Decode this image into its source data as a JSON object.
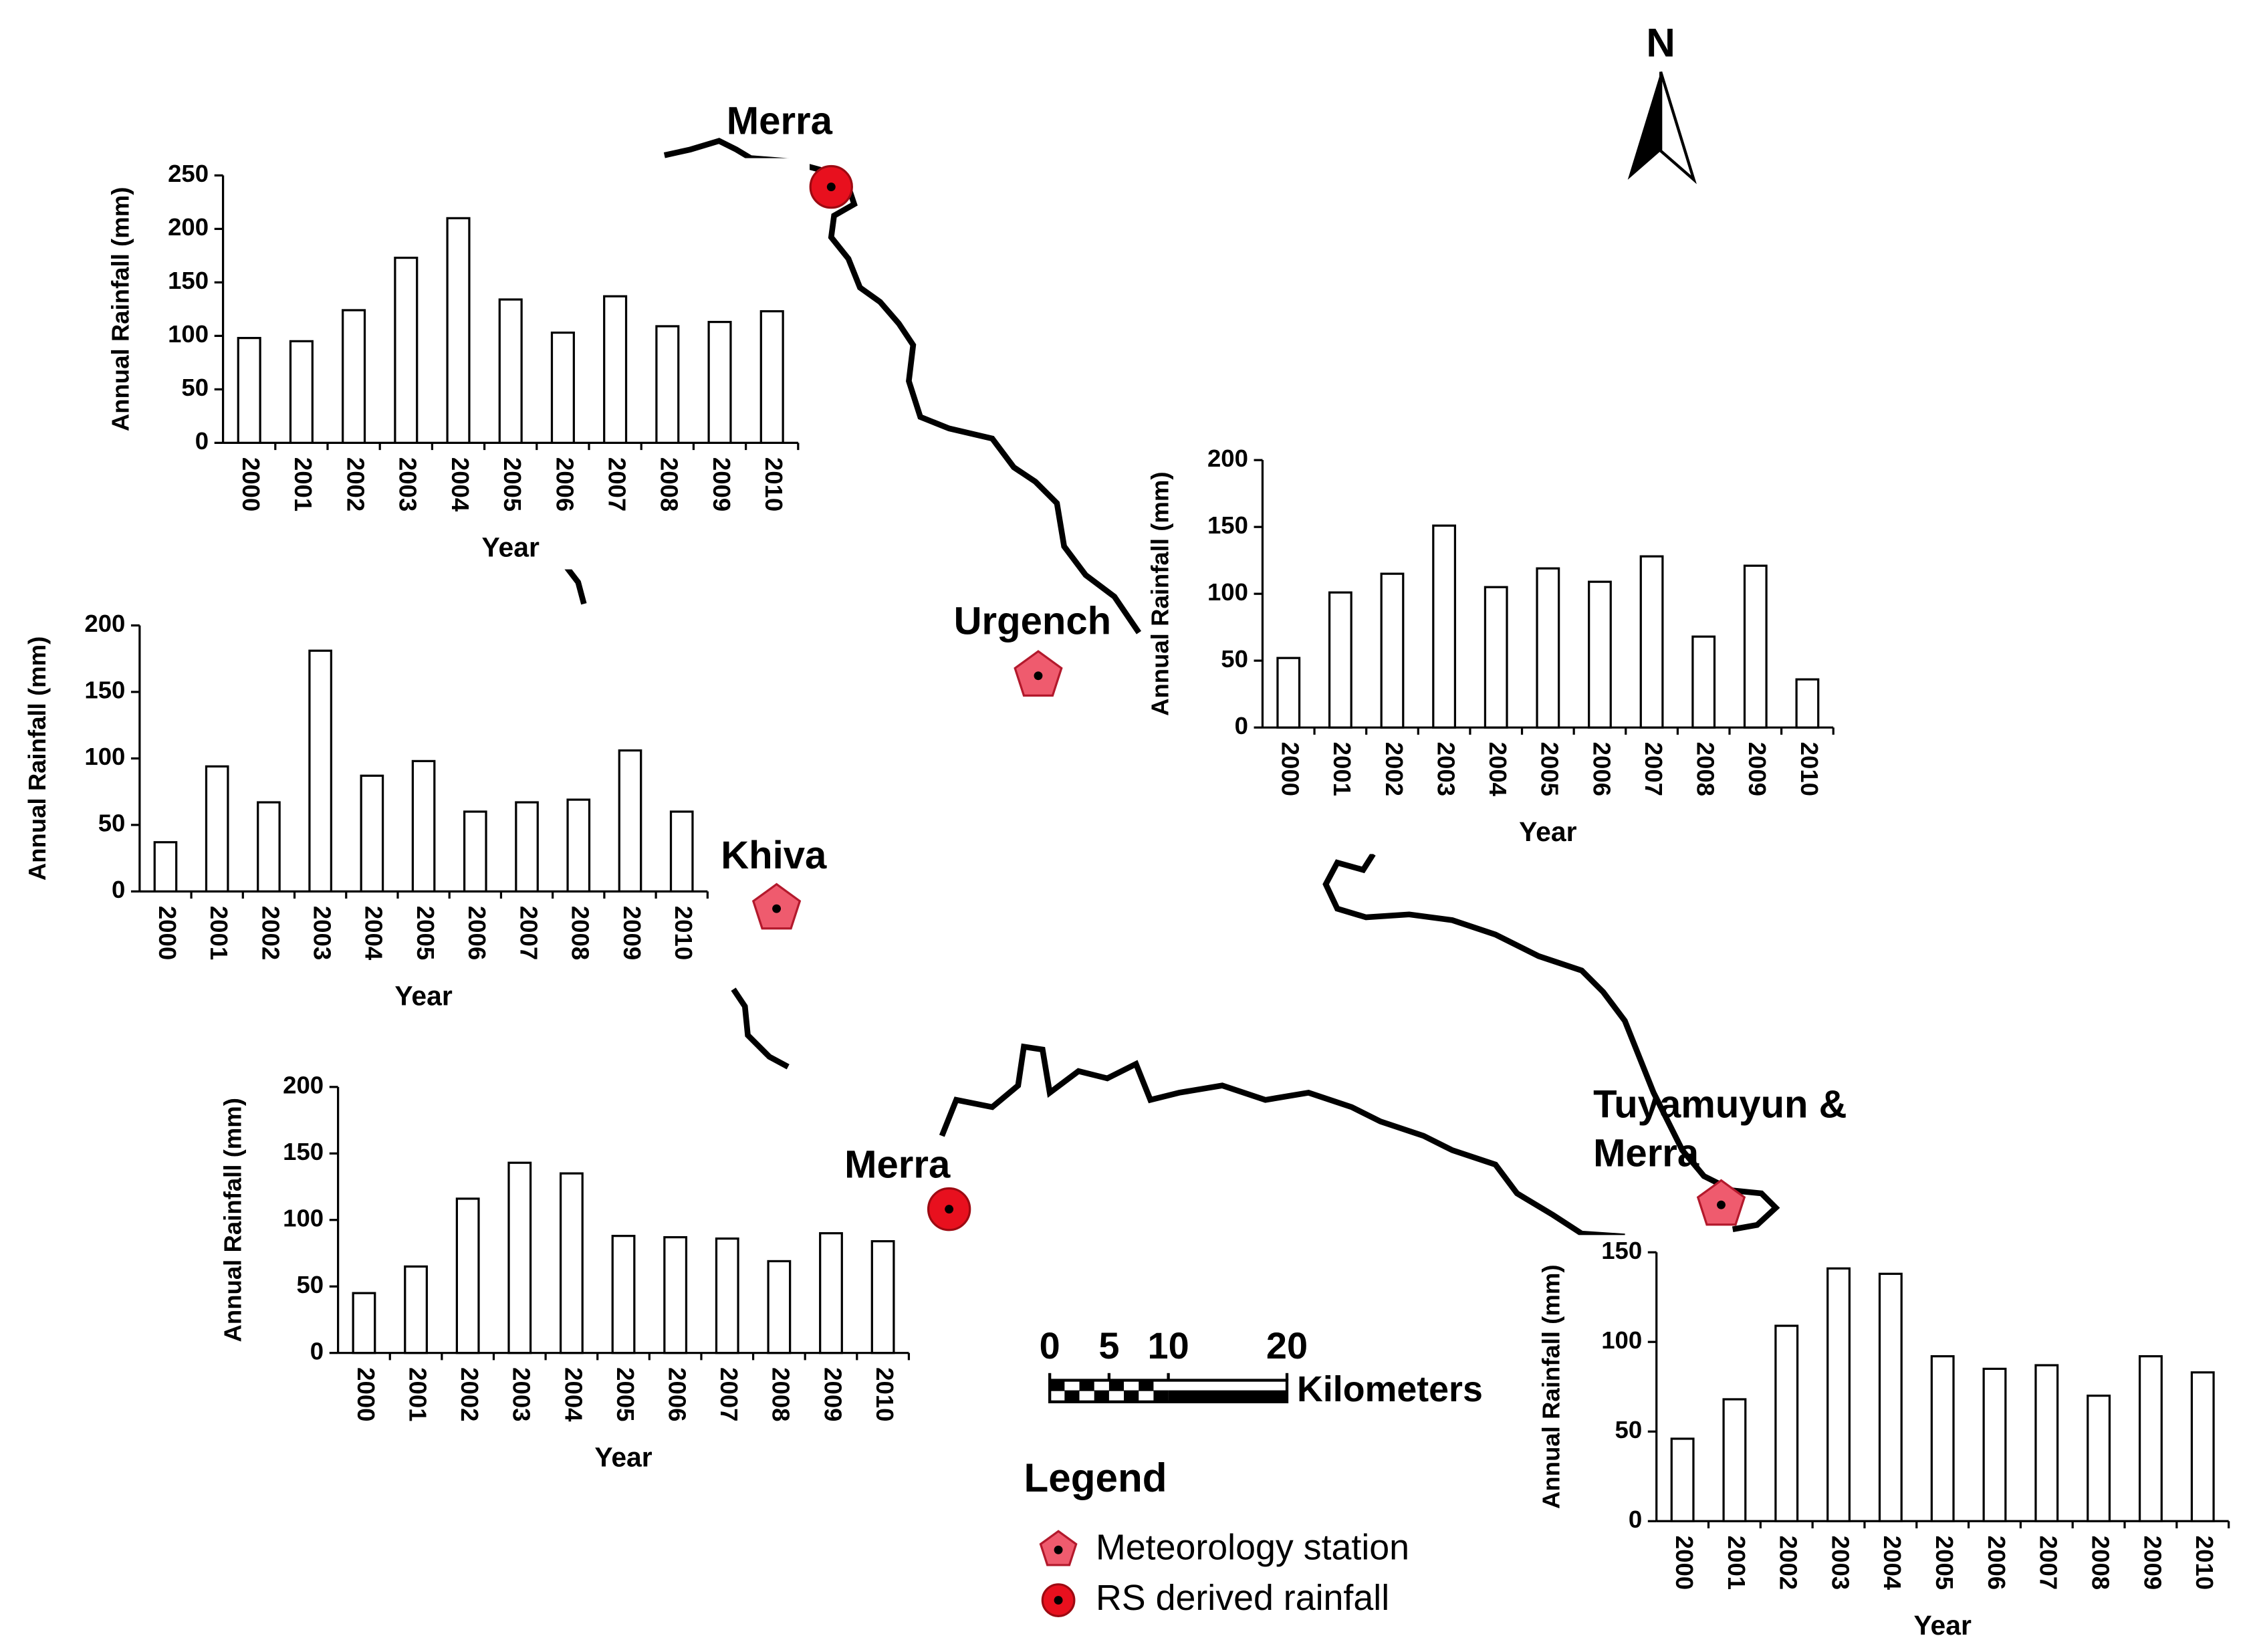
{
  "chart_data": [
    {
      "type": "bar",
      "categories": [
        "2000",
        "2001",
        "2002",
        "2003",
        "2004",
        "2005",
        "2006",
        "2007",
        "2008",
        "2009",
        "2010"
      ],
      "values": [
        98,
        95,
        124,
        173,
        210,
        134,
        103,
        137,
        109,
        113,
        123
      ],
      "ylim": [
        0,
        250
      ],
      "yticks": [
        0,
        50,
        100,
        150,
        200,
        250
      ],
      "xlabel": "Year",
      "ylabel": "Annual Rainfall (mm)",
      "color": "#ffffff"
    },
    {
      "type": "bar",
      "categories": [
        "2000",
        "2001",
        "2002",
        "2003",
        "2004",
        "2005",
        "2006",
        "2007",
        "2008",
        "2009",
        "2010"
      ],
      "values": [
        52,
        101,
        115,
        151,
        105,
        119,
        109,
        128,
        68,
        121,
        36
      ],
      "ylim": [
        0,
        200
      ],
      "yticks": [
        0,
        50,
        100,
        150,
        200
      ],
      "xlabel": "Year",
      "ylabel": "Annual Rainfall (mm)",
      "color": "#ffffff"
    },
    {
      "type": "bar",
      "categories": [
        "2000",
        "2001",
        "2002",
        "2003",
        "2004",
        "2005",
        "2006",
        "2007",
        "2008",
        "2009",
        "2010"
      ],
      "values": [
        37,
        94,
        67,
        181,
        87,
        98,
        60,
        67,
        69,
        106,
        60
      ],
      "ylim": [
        0,
        200
      ],
      "yticks": [
        0,
        50,
        100,
        150,
        200
      ],
      "xlabel": "Year",
      "ylabel": "Annual Rainfall (mm)",
      "color": "#ffffff"
    },
    {
      "type": "bar",
      "categories": [
        "2000",
        "2001",
        "2002",
        "2003",
        "2004",
        "2005",
        "2006",
        "2007",
        "2008",
        "2009",
        "2010"
      ],
      "values": [
        45,
        65,
        116,
        143,
        135,
        88,
        87,
        86,
        69,
        90,
        84
      ],
      "ylim": [
        0,
        200
      ],
      "yticks": [
        0,
        50,
        100,
        150,
        200
      ],
      "xlabel": "Year",
      "ylabel": "Annual Rainfall (mm)",
      "color": "#ffffff"
    },
    {
      "type": "bar",
      "categories": [
        "2000",
        "2001",
        "2002",
        "2003",
        "2004",
        "2005",
        "2006",
        "2007",
        "2008",
        "2009",
        "2010"
      ],
      "values": [
        46,
        68,
        109,
        141,
        138,
        92,
        85,
        87,
        70,
        92,
        83
      ],
      "ylim": [
        0,
        150
      ],
      "yticks": [
        0,
        50,
        100,
        150
      ],
      "xlabel": "Year",
      "ylabel": "Annual Rainfall (mm)",
      "color": "#ffffff"
    }
  ],
  "stations": [
    {
      "lines": [
        "Merra"
      ],
      "kind": "rs"
    },
    {
      "lines": [
        "Urgench"
      ],
      "kind": "met"
    },
    {
      "lines": [
        "Khiva"
      ],
      "kind": "met"
    },
    {
      "lines": [
        "Merra"
      ],
      "kind": "rs"
    },
    {
      "lines": [
        "Tuyamuyun &",
        "Merra"
      ],
      "kind": "met"
    }
  ],
  "north": "N",
  "scale_bar": {
    "ticks": [
      0,
      5,
      10,
      20
    ],
    "unit": "Kilometers"
  },
  "legend": {
    "title": "Legend",
    "items": [
      "Meteorology station",
      "RS derived rainfall"
    ]
  }
}
